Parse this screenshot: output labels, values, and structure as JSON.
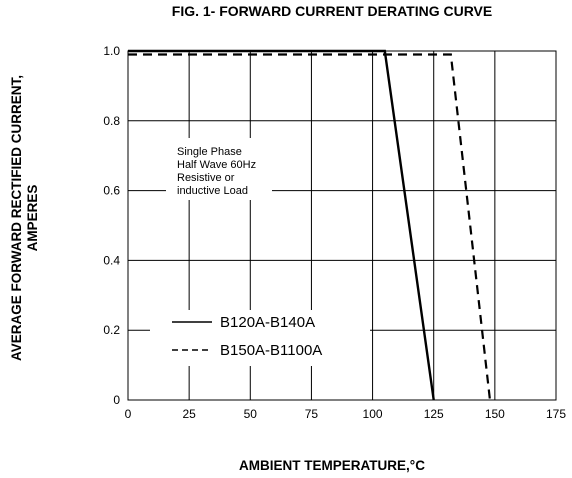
{
  "chart_data": {
    "type": "line",
    "title": "FIG. 1- FORWARD CURRENT DERATING CURVE",
    "xlabel": "AMBIENT TEMPERATURE,°C",
    "ylabel_lines": [
      "AVERAGE FORWARD RECTIFIED CURRENT,",
      "AMPERES"
    ],
    "xlim": [
      0,
      175
    ],
    "ylim": [
      0,
      1.0
    ],
    "xticks": [
      0,
      25,
      50,
      75,
      100,
      125,
      150,
      175
    ],
    "xtick_labels": [
      "0",
      "25",
      "50",
      "75",
      "100",
      "125",
      "150",
      "175"
    ],
    "yticks": [
      0,
      0.2,
      0.4,
      0.6,
      0.8,
      1.0
    ],
    "ytick_labels": [
      "0",
      "0.2",
      "0.4",
      "0.6",
      "0.8",
      "1.0"
    ],
    "grid": true,
    "legend_position": "bottom-left",
    "annotation": [
      "Single Phase",
      "Half Wave 60Hz",
      "Resistive or",
      "inductive Load"
    ],
    "series": [
      {
        "name": "B120A-B140A",
        "style": "solid",
        "color": "#000000",
        "x": [
          0,
          105,
          125
        ],
        "y": [
          1.0,
          1.0,
          0
        ]
      },
      {
        "name": "B150A-B1100A",
        "style": "dashed",
        "color": "#000000",
        "x": [
          0,
          132,
          148
        ],
        "y": [
          0.99,
          0.99,
          0
        ]
      }
    ]
  }
}
